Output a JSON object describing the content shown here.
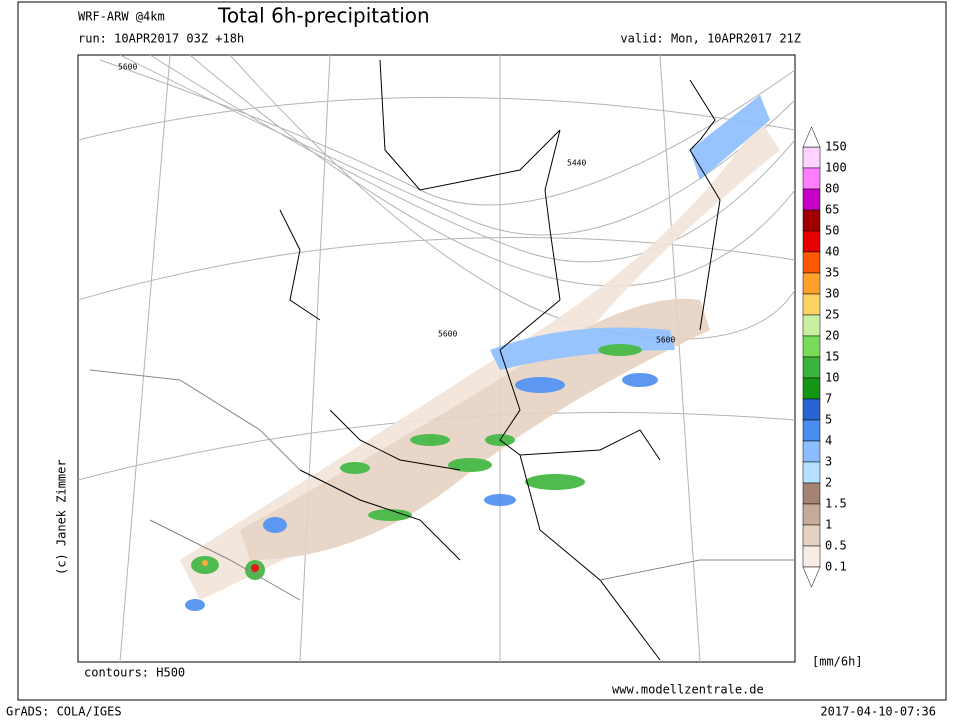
{
  "header": {
    "model": "WRF-ARW @4km",
    "title": "Total 6h-precipitation",
    "run": "run: 10APR2017 03Z +18h",
    "valid": "valid: Mon, 10APR2017 21Z"
  },
  "map": {
    "contour_labels": [
      "5600",
      "5440",
      "5600",
      "5600"
    ],
    "copyright": "(c) Janek Zimmer"
  },
  "legend": {
    "labels": [
      "150",
      "100",
      "80",
      "65",
      "50",
      "40",
      "35",
      "30",
      "25",
      "20",
      "15",
      "10",
      "7",
      "5",
      "4",
      "3",
      "2",
      "1.5",
      "1",
      "0.5",
      "0.1"
    ],
    "colors": [
      "#ffd2ff",
      "#ff7dff",
      "#c800c8",
      "#a00000",
      "#e60000",
      "#ff5a00",
      "#ffa028",
      "#ffd264",
      "#c8f0a0",
      "#78dc5a",
      "#3cb43c",
      "#149614",
      "#2864d2",
      "#4b8cf0",
      "#8cbeff",
      "#b4e1ff",
      "#a58273",
      "#c8aa9b",
      "#e6d2c3",
      "#f7ede6"
    ],
    "unit": "[mm/6h]"
  },
  "footer": {
    "contours": "contours: H500",
    "website": "www.modellzentrale.de",
    "software": "GrADS: COLA/IGES",
    "timestamp": "2017-04-10-07:36"
  }
}
